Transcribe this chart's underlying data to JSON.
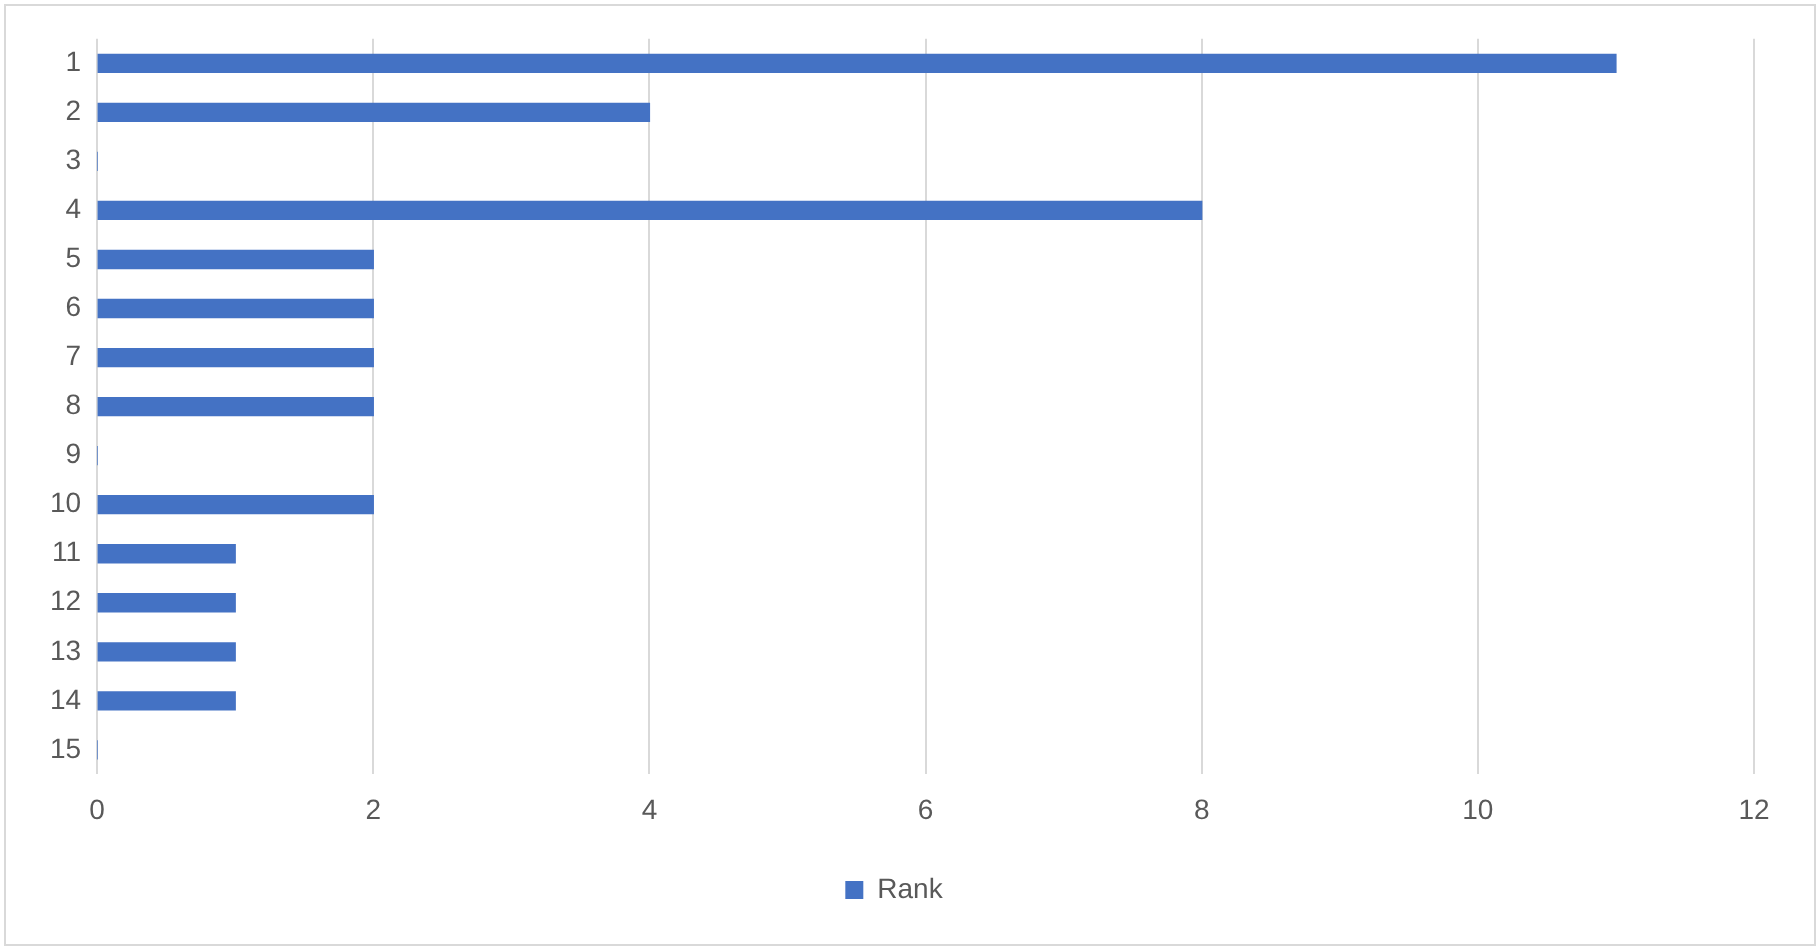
{
  "chart_data": {
    "type": "bar",
    "orientation": "horizontal",
    "categories": [
      "1",
      "2",
      "3",
      "4",
      "5",
      "6",
      "7",
      "8",
      "9",
      "10",
      "11",
      "12",
      "13",
      "14",
      "15"
    ],
    "series": [
      {
        "name": "Rank",
        "color": "#4472c4",
        "values": [
          11,
          4,
          0,
          8,
          2,
          2,
          2,
          2,
          0,
          2,
          1,
          1,
          1,
          1,
          0
        ]
      }
    ],
    "xlim": [
      0,
      12
    ],
    "xticks": [
      0,
      2,
      4,
      6,
      8,
      10,
      12
    ],
    "grid": "x",
    "legend": "bottom"
  }
}
